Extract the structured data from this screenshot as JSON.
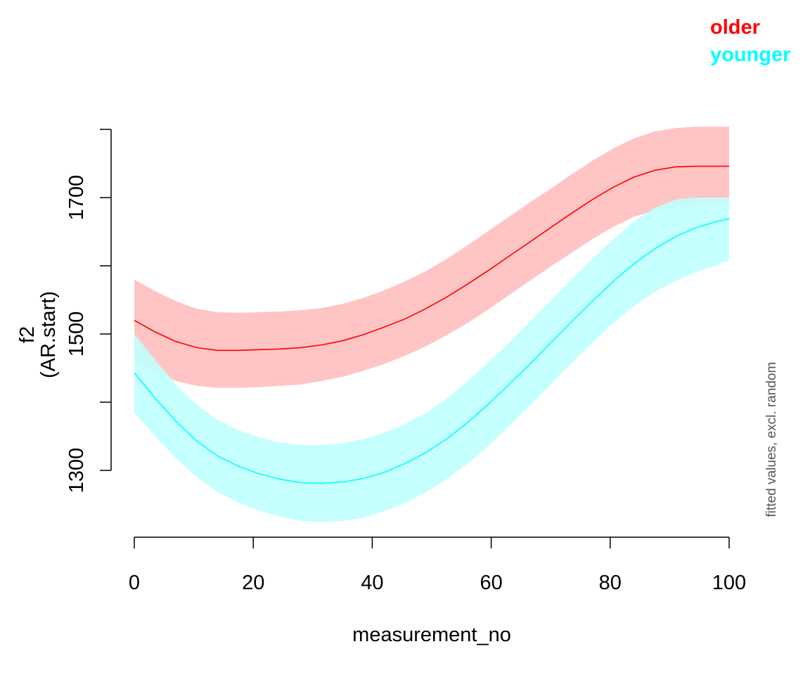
{
  "chart_data": {
    "type": "line",
    "xlabel": "measurement_no",
    "ylabel_lines": [
      "f2",
      "(AR.start)"
    ],
    "side_note": "fitted values, excl. random",
    "xlim": [
      0,
      100
    ],
    "ylim": [
      1200,
      1800
    ],
    "x_ticks": [
      0,
      20,
      40,
      60,
      80,
      100
    ],
    "y_ticks": [
      1300,
      1400,
      1500,
      1600,
      1700,
      1800
    ],
    "y_tick_labels": [
      "1300",
      "",
      "1500",
      "",
      "1700",
      ""
    ],
    "x": [
      0,
      3.5,
      7,
      10.5,
      14,
      17.5,
      21,
      24.5,
      28,
      31.5,
      35,
      38.5,
      42,
      45.5,
      49,
      52.5,
      56,
      59.5,
      63,
      66.5,
      70,
      73.5,
      77,
      80.5,
      84,
      87.5,
      91,
      94.5,
      98,
      100
    ],
    "series": [
      {
        "name": "older",
        "color": "#ff0000",
        "band_color": "#ffbfbf",
        "values": [
          1520,
          1503,
          1489,
          1480,
          1476,
          1476,
          1477,
          1478,
          1480,
          1484,
          1490,
          1499,
          1510,
          1522,
          1537,
          1554,
          1573,
          1593,
          1614,
          1635,
          1656,
          1677,
          1697,
          1715,
          1730,
          1740,
          1745,
          1746,
          1746,
          1746
        ],
        "lower": [
          1460,
          1444,
          1431,
          1424,
          1421,
          1421,
          1422,
          1424,
          1426,
          1431,
          1437,
          1446,
          1456,
          1468,
          1482,
          1498,
          1516,
          1536,
          1557,
          1578,
          1599,
          1619,
          1639,
          1657,
          1672,
          1681,
          1686,
          1688,
          1688,
          1688
        ],
        "upper": [
          1580,
          1563,
          1548,
          1537,
          1532,
          1531,
          1532,
          1533,
          1535,
          1538,
          1544,
          1553,
          1564,
          1577,
          1592,
          1610,
          1630,
          1651,
          1672,
          1693,
          1713,
          1734,
          1754,
          1772,
          1787,
          1797,
          1802,
          1804,
          1804,
          1804
        ]
      },
      {
        "name": "younger",
        "color": "#00ffff",
        "band_color": "#bffffe",
        "values": [
          1443,
          1406,
          1372,
          1343,
          1321,
          1306,
          1295,
          1287,
          1282,
          1281,
          1283,
          1288,
          1297,
          1310,
          1326,
          1346,
          1370,
          1397,
          1426,
          1456,
          1487,
          1518,
          1548,
          1577,
          1603,
          1625,
          1643,
          1656,
          1665,
          1669
        ],
        "lower": [
          1385,
          1350,
          1318,
          1290,
          1268,
          1253,
          1241,
          1232,
          1226,
          1224,
          1226,
          1231,
          1240,
          1252,
          1268,
          1287,
          1310,
          1336,
          1365,
          1395,
          1426,
          1457,
          1487,
          1516,
          1541,
          1562,
          1578,
          1591,
          1601,
          1608
        ],
        "upper": [
          1500,
          1462,
          1426,
          1396,
          1374,
          1359,
          1348,
          1341,
          1337,
          1337,
          1340,
          1346,
          1355,
          1368,
          1384,
          1405,
          1430,
          1458,
          1487,
          1518,
          1549,
          1580,
          1610,
          1639,
          1665,
          1685,
          1697,
          1700,
          1700,
          1700
        ]
      }
    ]
  }
}
